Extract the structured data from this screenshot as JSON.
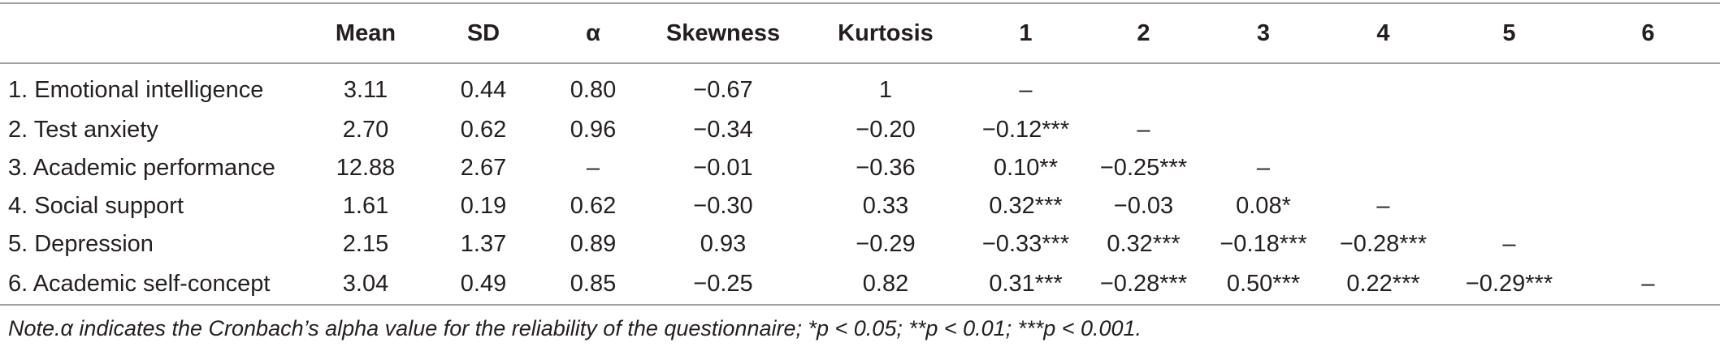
{
  "table": {
    "headers": [
      "",
      "Mean",
      "SD",
      "α",
      "Skewness",
      "Kurtosis",
      "1",
      "2",
      "3",
      "4",
      "5",
      "6"
    ],
    "rows": [
      {
        "label": "1. Emotional intelligence",
        "cells": [
          "3.11",
          "0.44",
          "0.80",
          "−0.67",
          "1",
          "–",
          "",
          "",
          "",
          "",
          ""
        ]
      },
      {
        "label": "2. Test anxiety",
        "cells": [
          "2.70",
          "0.62",
          "0.96",
          "−0.34",
          "−0.20",
          "−0.12***",
          "–",
          "",
          "",
          "",
          ""
        ]
      },
      {
        "label": "3. Academic performance",
        "cells": [
          "12.88",
          "2.67",
          "–",
          "−0.01",
          "−0.36",
          "0.10**",
          "−0.25***",
          "–",
          "",
          "",
          ""
        ]
      },
      {
        "label": "4. Social support",
        "cells": [
          "1.61",
          "0.19",
          "0.62",
          "−0.30",
          "0.33",
          "0.32***",
          "−0.03",
          "0.08*",
          "–",
          "",
          ""
        ]
      },
      {
        "label": "5. Depression",
        "cells": [
          "2.15",
          "1.37",
          "0.89",
          "0.93",
          "−0.29",
          "−0.33***",
          "0.32***",
          "−0.18***",
          "−0.28***",
          "–",
          ""
        ]
      },
      {
        "label": "6. Academic self-concept",
        "cells": [
          "3.04",
          "0.49",
          "0.85",
          "−0.25",
          "0.82",
          "0.31***",
          "−0.28***",
          "0.50***",
          "0.22***",
          "−0.29***",
          "–"
        ]
      }
    ]
  },
  "note": "Note.α indicates the Cronbach’s alpha value for the reliability of the questionnaire; *p < 0.05; **p < 0.01; ***p < 0.001."
}
